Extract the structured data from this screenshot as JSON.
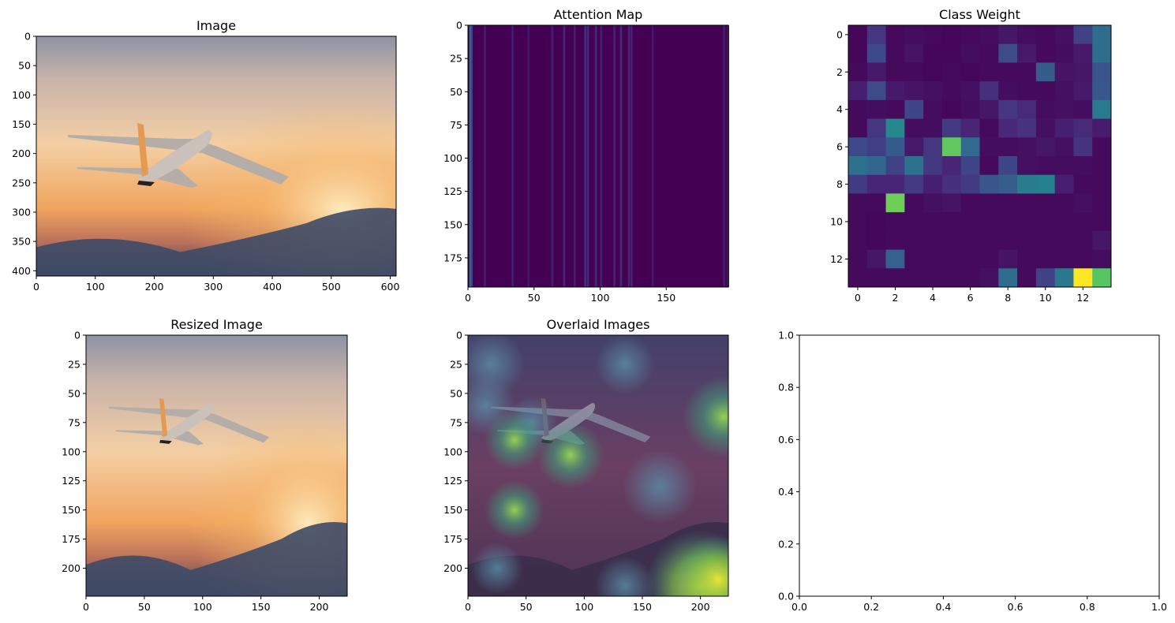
{
  "figure": {
    "panels": [
      {
        "id": "image",
        "title": "Image",
        "type": "image",
        "x_ticks": [
          0,
          100,
          200,
          300,
          400,
          500,
          600
        ],
        "y_ticks": [
          0,
          50,
          100,
          150,
          200,
          250,
          300,
          350,
          400
        ],
        "xlim": [
          0,
          610
        ],
        "ylim": [
          409,
          0
        ]
      },
      {
        "id": "attention",
        "title": "Attention Map",
        "type": "heatmap",
        "x_ticks": [
          0,
          50,
          100,
          150
        ],
        "y_ticks": [
          0,
          25,
          50,
          75,
          100,
          125,
          150,
          175
        ],
        "xlim": [
          0,
          197
        ],
        "ylim": [
          197,
          0
        ]
      },
      {
        "id": "classweight",
        "title": "Class Weight",
        "type": "heatmap",
        "x_ticks": [
          0,
          2,
          4,
          6,
          8,
          10,
          12
        ],
        "y_ticks": [
          0,
          2,
          4,
          6,
          8,
          10,
          12
        ],
        "xlim": [
          -0.5,
          13.5
        ],
        "ylim": [
          13.5,
          -0.5
        ]
      },
      {
        "id": "resized",
        "title": "Resized Image",
        "type": "image",
        "x_ticks": [
          0,
          50,
          100,
          150,
          200
        ],
        "y_ticks": [
          0,
          25,
          50,
          75,
          100,
          125,
          150,
          175,
          200
        ],
        "xlim": [
          0,
          224
        ],
        "ylim": [
          224,
          0
        ]
      },
      {
        "id": "overlay",
        "title": "Overlaid Images",
        "type": "image",
        "x_ticks": [
          0,
          50,
          100,
          150,
          200
        ],
        "y_ticks": [
          0,
          25,
          50,
          75,
          100,
          125,
          150,
          175,
          200
        ],
        "xlim": [
          0,
          224
        ],
        "ylim": [
          224,
          0
        ]
      },
      {
        "id": "empty",
        "title": "",
        "type": "empty",
        "x_ticks": [
          "0.0",
          "0.2",
          "0.4",
          "0.6",
          "0.8",
          "1.0"
        ],
        "y_ticks": [
          "0.0",
          "0.2",
          "0.4",
          "0.6",
          "0.8",
          "1.0"
        ],
        "xlim": [
          0,
          1
        ],
        "ylim": [
          1,
          0
        ]
      }
    ]
  },
  "chart_data": [
    {
      "type": "heatmap",
      "title": "Image",
      "note": "photo of an airliner flying at sunset",
      "xlim": [
        0,
        610
      ],
      "ylim": [
        409,
        0
      ]
    },
    {
      "type": "heatmap",
      "title": "Attention Map",
      "xlim": [
        0,
        197
      ],
      "ylim": [
        197,
        0
      ],
      "colormap": "viridis"
    },
    {
      "type": "heatmap",
      "title": "Class Weight",
      "colormap": "viridis",
      "xlim": [
        -0.5,
        13.5
      ],
      "ylim": [
        13.5,
        -0.5
      ],
      "values": [
        [
          0.02,
          0.18,
          0.03,
          0.04,
          0.03,
          0.02,
          0.03,
          0.04,
          0.07,
          0.04,
          0.03,
          0.05,
          0.22,
          0.4
        ],
        [
          0.02,
          0.25,
          0.03,
          0.06,
          0.02,
          0.02,
          0.04,
          0.03,
          0.26,
          0.08,
          0.03,
          0.04,
          0.08,
          0.4
        ],
        [
          0.03,
          0.08,
          0.03,
          0.03,
          0.02,
          0.03,
          0.02,
          0.03,
          0.03,
          0.03,
          0.33,
          0.06,
          0.07,
          0.29
        ],
        [
          0.1,
          0.26,
          0.08,
          0.06,
          0.05,
          0.03,
          0.05,
          0.16,
          0.04,
          0.03,
          0.03,
          0.05,
          0.08,
          0.31
        ],
        [
          0.03,
          0.04,
          0.03,
          0.24,
          0.04,
          0.02,
          0.04,
          0.07,
          0.18,
          0.14,
          0.04,
          0.05,
          0.04,
          0.46
        ],
        [
          0.03,
          0.18,
          0.53,
          0.04,
          0.04,
          0.2,
          0.12,
          0.03,
          0.13,
          0.17,
          0.05,
          0.1,
          0.14,
          0.09
        ],
        [
          0.25,
          0.21,
          0.32,
          0.08,
          0.18,
          0.85,
          0.39,
          0.04,
          0.04,
          0.05,
          0.07,
          0.05,
          0.17,
          0.03
        ],
        [
          0.42,
          0.37,
          0.22,
          0.42,
          0.19,
          0.12,
          0.24,
          0.03,
          0.24,
          0.05,
          0.04,
          0.04,
          0.04,
          0.03
        ],
        [
          0.2,
          0.12,
          0.12,
          0.2,
          0.1,
          0.16,
          0.2,
          0.3,
          0.34,
          0.47,
          0.49,
          0.1,
          0.03,
          0.03
        ],
        [
          0.03,
          0.03,
          0.88,
          0.03,
          0.05,
          0.06,
          0.03,
          0.03,
          0.03,
          0.03,
          0.03,
          0.03,
          0.05,
          0.03
        ],
        [
          0.03,
          0.02,
          0.03,
          0.03,
          0.03,
          0.03,
          0.03,
          0.03,
          0.03,
          0.03,
          0.03,
          0.03,
          0.03,
          0.03
        ],
        [
          0.03,
          0.02,
          0.03,
          0.03,
          0.03,
          0.03,
          0.03,
          0.03,
          0.03,
          0.03,
          0.03,
          0.03,
          0.03,
          0.07
        ],
        [
          0.03,
          0.07,
          0.35,
          0.03,
          0.03,
          0.03,
          0.03,
          0.03,
          0.06,
          0.03,
          0.03,
          0.03,
          0.03,
          0.04
        ],
        [
          0.03,
          0.03,
          0.03,
          0.03,
          0.03,
          0.03,
          0.03,
          0.05,
          0.4,
          0.03,
          0.22,
          0.45,
          1.0,
          0.83
        ]
      ]
    },
    {
      "type": "heatmap",
      "title": "Resized Image",
      "xlim": [
        0,
        224
      ],
      "ylim": [
        224,
        0
      ]
    },
    {
      "type": "heatmap",
      "title": "Overlaid Images",
      "xlim": [
        0,
        224
      ],
      "ylim": [
        224,
        0
      ]
    },
    {
      "type": "scatter",
      "title": "",
      "xlim": [
        0,
        1
      ],
      "ylim": [
        0,
        1
      ],
      "series": []
    }
  ]
}
